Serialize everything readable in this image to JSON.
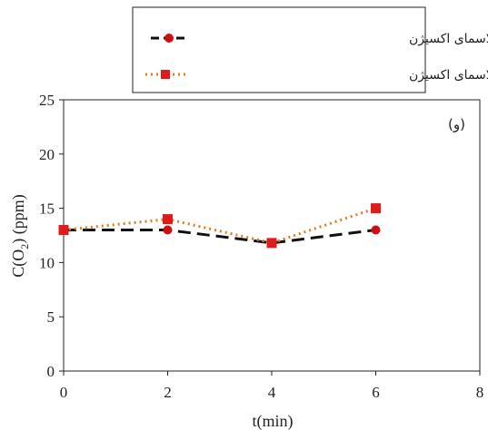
{
  "chart_data": {
    "type": "line",
    "x": [
      0,
      2,
      4,
      6
    ],
    "series": [
      {
        "name": "آند رابط کاتدی پلاسمای اکسیژن",
        "values": [
          13,
          13,
          11.8,
          13
        ],
        "color": "#cc1111",
        "line_style": "dashed",
        "line_color": "#111111",
        "marker": "circle"
      },
      {
        "name": "کاتد رابط کاتدی پلاسمای اکسیژن",
        "values": [
          13,
          14,
          11.8,
          15
        ],
        "color": "#e01b1b",
        "line_style": "dotted",
        "line_color": "#e07b1e",
        "marker": "square"
      }
    ],
    "xlabel": "t(min)",
    "ylabel": "C(O",
    "ylabel_sub": "2",
    "ylabel_tail": ") (ppm)",
    "xlim": [
      0,
      8
    ],
    "ylim": [
      0,
      25
    ],
    "xticks": [
      0,
      2,
      4,
      6,
      8
    ],
    "yticks": [
      0,
      5,
      10,
      15,
      20,
      25
    ],
    "xtick_labels": [
      "0",
      "2",
      "4",
      "6",
      "8"
    ],
    "ytick_labels": [
      "0",
      "5",
      "10",
      "15",
      "20",
      "25"
    ],
    "annotation": "(و)",
    "grid": false,
    "legend_position": "top"
  }
}
